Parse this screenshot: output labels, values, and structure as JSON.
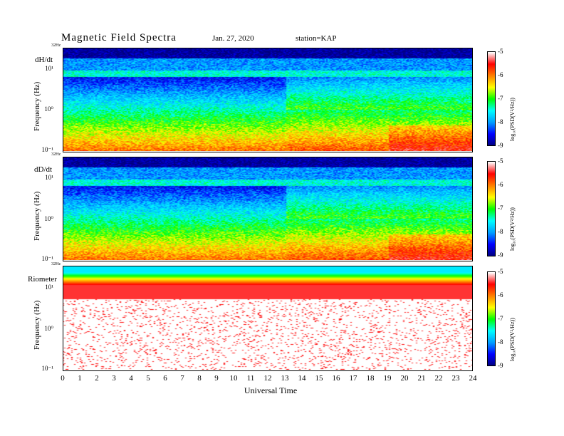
{
  "header": {
    "title": "Magnetic  Field  Spectra",
    "date": "Jan. 27, 2020",
    "station": "station=KAP"
  },
  "chart_data": [
    {
      "type": "heatmap",
      "panel_label": "dH/dt",
      "ylabel": "Frequency  (Hz)",
      "yscale": "log",
      "ylim": [
        0.1,
        32
      ],
      "yticks": [
        "10¹",
        "10⁰",
        "10⁻¹"
      ],
      "ytop_label": "32Hz",
      "xlabel": "Universal  Time",
      "xlim": [
        0,
        24
      ],
      "colorbar_label": "log₁₀(PSD(V²/Hz))",
      "colorbar_range": [
        -9,
        -5
      ],
      "colorbar_ticks": [
        "-5",
        "-6",
        "-7",
        "-8",
        "-9"
      ]
    },
    {
      "type": "heatmap",
      "panel_label": "dD/dt",
      "ylabel": "Frequency  (Hz)",
      "yscale": "log",
      "ylim": [
        0.1,
        32
      ],
      "yticks": [
        "10¹",
        "10⁰",
        "10⁻¹"
      ],
      "ytop_label": "32Hz",
      "xlim": [
        0,
        24
      ],
      "colorbar_label": "log₁₀(PSD(V²/Hz))",
      "colorbar_range": [
        -9,
        -5
      ],
      "colorbar_ticks": [
        "-5",
        "-6",
        "-7",
        "-8",
        "-9"
      ]
    },
    {
      "type": "heatmap",
      "panel_label": "Riometer",
      "ylabel": "Frequency  (Hz)",
      "yscale": "log",
      "ylim": [
        0.1,
        32
      ],
      "yticks": [
        "10¹",
        "10⁰",
        "10⁻¹"
      ],
      "ytop_label": "32Hz",
      "xlim": [
        0,
        24
      ],
      "colorbar_label": "log₁₀(PSD(V²/Hz))",
      "colorbar_range": [
        -9,
        -5
      ],
      "colorbar_ticks": [
        "-5",
        "-6",
        "-7",
        "-8",
        "-9"
      ]
    }
  ],
  "xaxis": {
    "label": "Universal  Time",
    "ticks": [
      "0",
      "1",
      "2",
      "3",
      "4",
      "5",
      "6",
      "7",
      "8",
      "9",
      "10",
      "11",
      "12",
      "13",
      "14",
      "15",
      "16",
      "17",
      "18",
      "19",
      "20",
      "21",
      "22",
      "23",
      "24"
    ]
  },
  "colors": {
    "scale": [
      "#000080",
      "#0000ff",
      "#00a0ff",
      "#00ffff",
      "#00ff00",
      "#ffff00",
      "#ff8000",
      "#ff0000",
      "#ffffff"
    ]
  }
}
